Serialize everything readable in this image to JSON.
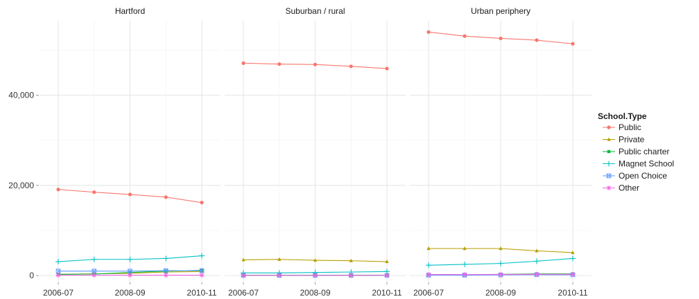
{
  "chart_data": {
    "type": "line",
    "x": [
      "2006-07",
      "2007-08",
      "2008-09",
      "2009-10",
      "2010-11"
    ],
    "x_tick_labels": [
      "2006-07",
      "2008-09",
      "2010-11"
    ],
    "y_tick_labels": [
      "0",
      "20,000",
      "40,000"
    ],
    "y_ticks": [
      0,
      20000,
      40000
    ],
    "ylim": [
      -1500,
      56500
    ],
    "grid": true,
    "legend_position": "right",
    "legend_title": "School.Type",
    "colors": {
      "Public": "#F8766D",
      "Private": "#B79F00",
      "Public charter": "#00BA38",
      "Magnet School": "#00BFC4",
      "Open Choice": "#619CFF",
      "Other": "#F564E3"
    },
    "markers": {
      "Public": "circle",
      "Private": "triangle",
      "Public charter": "square",
      "Magnet School": "plus",
      "Open Choice": "square-cross",
      "Other": "star"
    },
    "panels": [
      {
        "title": "Hartford",
        "series": [
          {
            "name": "Public",
            "values": [
              19100,
              18500,
              18000,
              17400,
              16200
            ]
          },
          {
            "name": "Private",
            "values": [
              300,
              400,
              500,
              800,
              900
            ]
          },
          {
            "name": "Public charter",
            "values": [
              300,
              350,
              700,
              1000,
              1200
            ]
          },
          {
            "name": "Magnet School",
            "values": [
              3100,
              3600,
              3600,
              3800,
              4400
            ]
          },
          {
            "name": "Open Choice",
            "values": [
              1000,
              1000,
              1000,
              1100,
              1100
            ]
          },
          {
            "name": "Other",
            "values": [
              100,
              100,
              100,
              100,
              100
            ]
          }
        ]
      },
      {
        "title": "Suburban / rural",
        "series": [
          {
            "name": "Public",
            "values": [
              47100,
              46900,
              46800,
              46400,
              45900
            ]
          },
          {
            "name": "Private",
            "values": [
              3500,
              3600,
              3400,
              3300,
              3100
            ]
          },
          {
            "name": "Public charter",
            "values": [
              100,
              100,
              100,
              100,
              100
            ]
          },
          {
            "name": "Magnet School",
            "values": [
              600,
              600,
              700,
              800,
              900
            ]
          },
          {
            "name": "Open Choice",
            "values": [
              50,
              50,
              50,
              50,
              50
            ]
          },
          {
            "name": "Other",
            "values": [
              50,
              50,
              50,
              50,
              50
            ]
          }
        ]
      },
      {
        "title": "Urban periphery",
        "series": [
          {
            "name": "Public",
            "values": [
              54000,
              53100,
              52600,
              52200,
              51400
            ]
          },
          {
            "name": "Private",
            "values": [
              6000,
              6000,
              6000,
              5500,
              5100
            ]
          },
          {
            "name": "Public charter",
            "values": [
              200,
              200,
              300,
              400,
              400
            ]
          },
          {
            "name": "Magnet School",
            "values": [
              2300,
              2500,
              2700,
              3200,
              3800
            ]
          },
          {
            "name": "Open Choice",
            "values": [
              100,
              100,
              150,
              200,
              200
            ]
          },
          {
            "name": "Other",
            "values": [
              250,
              250,
              250,
              300,
              300
            ]
          }
        ]
      }
    ]
  }
}
